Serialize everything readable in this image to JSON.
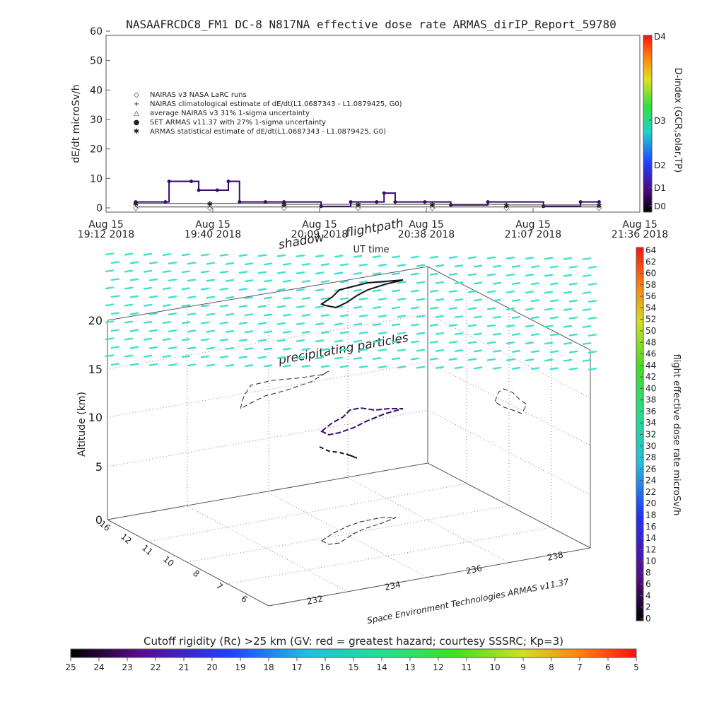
{
  "title": "NASAAFRCDC8_FM1 DC-8    N817NA effective dose rate ARMAS_dirIP_Report_59780",
  "top_chart": {
    "ylabel": "dE/dt microSv/h",
    "xlabel": "UT time",
    "y_ticks": [
      "0",
      "10",
      "20",
      "30",
      "40",
      "50",
      "60"
    ],
    "x_ticks": [
      {
        "l1": "Aug 15",
        "l2": "19:12 2018"
      },
      {
        "l1": "Aug 15",
        "l2": "19:40 2018"
      },
      {
        "l1": "Aug 15",
        "l2": "20:09 2018"
      },
      {
        "l1": "Aug 15",
        "l2": "20:38 2018"
      },
      {
        "l1": "Aug 15",
        "l2": "21:07 2018"
      },
      {
        "l1": "Aug 15",
        "l2": "21:36 2018"
      }
    ],
    "legend": [
      {
        "sym": "◇",
        "text": "NAIRAS v3 NASA LaRC runs"
      },
      {
        "sym": "+",
        "text": "NAIRAS climatological estimate of dE/dt(L1.0687343 - L1.0879425, G0)"
      },
      {
        "sym": "△",
        "text": "average NAIRAS v3 31% 1-sigma uncertainty"
      },
      {
        "sym": "●",
        "text": "SET ARMAS v11.37 with 27% 1-sigma uncertainty"
      },
      {
        "sym": "✱",
        "text": "ARMAS statistical estimate of dE/dt(L1.0687343 - L1.0879425, G0)"
      }
    ],
    "dindex": {
      "label": "D-index (GCR,solar,TP)",
      "ticks": [
        "D4",
        "D3",
        "D2",
        "D1",
        "D0"
      ]
    }
  },
  "annotations": {
    "shadow": "shadow",
    "flightpath": "flightpath",
    "particles": "precipitating particles"
  },
  "three_d": {
    "zlabel": "Altitude (km)",
    "z_ticks": [
      "0",
      "5",
      "10",
      "15",
      "20"
    ],
    "lat_ticks": [
      "16",
      "12",
      "11",
      "10",
      "8",
      "7",
      "6"
    ],
    "lon_ticks": [
      "232",
      "234",
      "236",
      "238"
    ],
    "credit": "Space Environment Technologies ARMAS v11.37"
  },
  "right_colorbar": {
    "label": "flight effective dose rate microSv/h",
    "ticks": [
      "0",
      "2",
      "4",
      "6",
      "8",
      "10",
      "12",
      "14",
      "16",
      "18",
      "20",
      "22",
      "24",
      "26",
      "28",
      "30",
      "32",
      "34",
      "36",
      "38",
      "40",
      "42",
      "44",
      "46",
      "48",
      "50",
      "52",
      "54",
      "56",
      "58",
      "60",
      "62",
      "64"
    ]
  },
  "bottom_colorbar": {
    "label": "Cutoff rigidity (Rc) >25 km (GV: red = greatest hazard; courtesy SSSRC; Kp=3)",
    "ticks": [
      "25",
      "24",
      "23",
      "22",
      "21",
      "20",
      "19",
      "18",
      "17",
      "16",
      "15",
      "14",
      "13",
      "12",
      "11",
      "10",
      "9",
      "8",
      "7",
      "6",
      "5"
    ]
  },
  "colors": {
    "dose": "#3a0a6a",
    "cutoff": "#40e0d0",
    "axis": "#555555"
  },
  "chart_data": {
    "type": "line",
    "title": "NASAAFRCDC8_FM1 DC-8    N817NA effective dose rate ARMAS_dirIP_Report_59780",
    "xlabel": "UT time",
    "ylabel": "dE/dt microSv/h",
    "ylim": [
      0,
      60
    ],
    "x_range": [
      "19:12",
      "21:36"
    ],
    "series": [
      {
        "name": "SET ARMAS v11.37 with 27% 1-sigma uncertainty",
        "x": [
          "19:20",
          "19:28",
          "19:29",
          "19:35",
          "19:37",
          "19:42",
          "19:45",
          "19:48",
          "19:55",
          "20:00",
          "20:10",
          "20:18",
          "20:25",
          "20:27",
          "20:30",
          "20:38",
          "20:45",
          "20:55",
          "21:10",
          "21:20",
          "21:25"
        ],
        "y": [
          2,
          2,
          9,
          9,
          6,
          6,
          9,
          2,
          2,
          2,
          0.5,
          2,
          2,
          5,
          2,
          2,
          1,
          2,
          0.5,
          2,
          2
        ]
      },
      {
        "name": "NAIRAS v3 NASA LaRC runs",
        "x": [
          "19:20",
          "19:40",
          "20:00",
          "20:20",
          "20:40",
          "21:00",
          "21:25"
        ],
        "y": [
          0.3,
          0.3,
          0.3,
          0.3,
          0.3,
          0.3,
          0.3
        ]
      },
      {
        "name": "ARMAS statistical estimate of dE/dt(L1.0687343 - L1.0879425, G0)",
        "x": [
          "19:20",
          "19:40",
          "20:00",
          "20:20",
          "20:40",
          "21:00",
          "21:25"
        ],
        "y": [
          1.5,
          1.5,
          1.2,
          1.2,
          1.2,
          1.0,
          1.0
        ]
      }
    ]
  }
}
